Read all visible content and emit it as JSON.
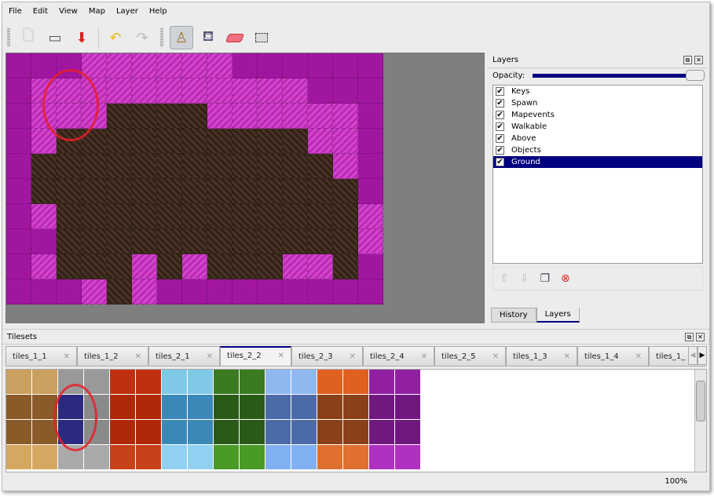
{
  "menu": [
    "File",
    "Edit",
    "View",
    "Map",
    "Layer",
    "Help"
  ],
  "toolbar": {
    "icons": [
      "new-file-icon",
      "open-icon",
      "save-icon",
      "undo-icon",
      "redo-icon",
      "stamp-brush-icon",
      "bucket-fill-icon",
      "eraser-icon",
      "rectangle-select-icon"
    ],
    "active": "stamp-brush-icon"
  },
  "layers_panel": {
    "title": "Layers",
    "opacity_label": "Opacity:",
    "opacity": 1.0,
    "layers": [
      {
        "name": "Keys",
        "visible": true
      },
      {
        "name": "Spawn",
        "visible": true
      },
      {
        "name": "Mapevents",
        "visible": true
      },
      {
        "name": "Walkable",
        "visible": true
      },
      {
        "name": "Above",
        "visible": true
      },
      {
        "name": "Objects",
        "visible": true
      },
      {
        "name": "Ground",
        "visible": true,
        "selected": true
      }
    ],
    "tabs": [
      "History",
      "Layers"
    ],
    "active_tab": "Layers"
  },
  "tilesets_panel": {
    "title": "Tilesets",
    "tabs": [
      "tiles_1_1",
      "tiles_1_2",
      "tiles_2_1",
      "tiles_2_2",
      "tiles_2_3",
      "tiles_2_4",
      "tiles_2_5",
      "tiles_1_3",
      "tiles_1_4",
      "tiles_1_"
    ],
    "active_tab": "tiles_2_2"
  },
  "status": {
    "zoom": "100%"
  },
  "colors": {
    "selection": "#000080",
    "map_bg": "#7f7f7f",
    "annotation": "#e61e28"
  }
}
